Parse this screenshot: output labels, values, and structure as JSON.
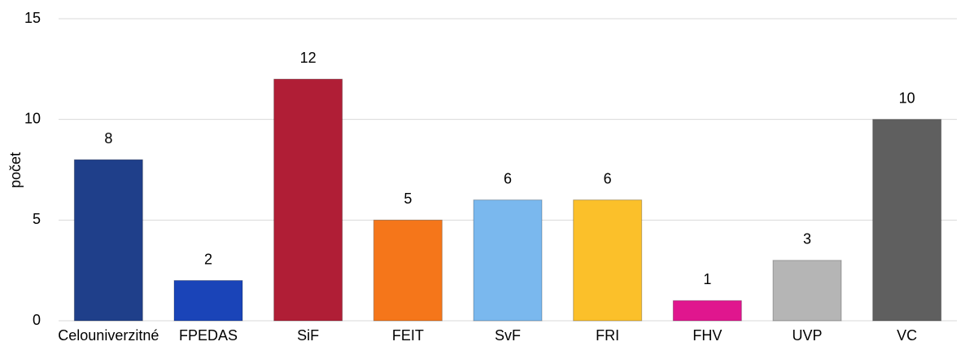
{
  "chart_data": {
    "type": "bar",
    "y_label": "počet",
    "categories": [
      "Celouniverzitné",
      "FPEDAS",
      "SiF",
      "FEIT",
      "SvF",
      "FRI",
      "FHV",
      "UVP",
      "VC"
    ],
    "values": [
      8,
      2,
      12,
      5,
      6,
      6,
      1,
      3,
      10
    ],
    "colors": [
      "#1f3f8a",
      "#1a44b8",
      "#b01e36",
      "#f5761a",
      "#7ab8ee",
      "#fbc02a",
      "#e0168e",
      "#b5b5b5",
      "#5f5f5f"
    ],
    "ylim": [
      0,
      15
    ],
    "yticks": [
      0,
      5,
      10,
      15
    ],
    "grid": true
  }
}
